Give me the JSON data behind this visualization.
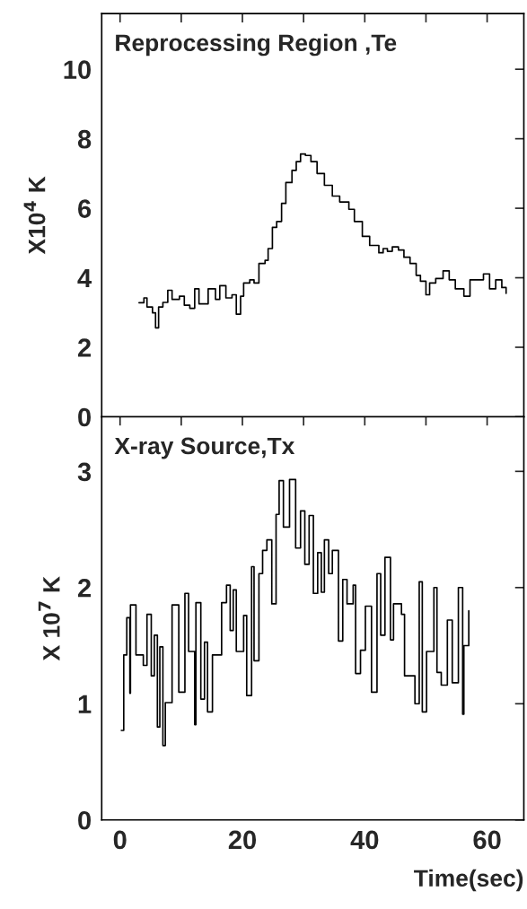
{
  "chart_data": [
    {
      "type": "step",
      "title": "Reprocessing Region ,Te",
      "ylabel": "X10$^{4}$ K",
      "xlim": [
        -3,
        66
      ],
      "xticks": [
        {
          "value": 0,
          "label": null
        },
        {
          "value": 10,
          "label": null
        },
        {
          "value": 20,
          "label": null
        },
        {
          "value": 30,
          "label": null
        },
        {
          "value": 40,
          "label": null
        },
        {
          "value": 50,
          "label": null
        },
        {
          "value": 60,
          "label": null
        }
      ],
      "ylim": [
        0,
        11.6
      ],
      "yticks": [
        0,
        2,
        4,
        6,
        8,
        10
      ],
      "tick_labels": "y",
      "series": [
        {
          "color": "#000000",
          "x": [
            3.1,
            3.9,
            4.4,
            5.3,
            5.8,
            6.3,
            7.0,
            7.8,
            8.5,
            9.7,
            10.5,
            11.4,
            12.2,
            12.9,
            14.4,
            15.6,
            16.3,
            17.3,
            18.3,
            19.0,
            19.7,
            20.2,
            21.2,
            21.9,
            22.7,
            23.7,
            24.2,
            24.9,
            25.6,
            26.4,
            27.1,
            28.1,
            28.8,
            29.5,
            30.3,
            31.2,
            32.2,
            33.4,
            34.7,
            35.9,
            37.4,
            38.3,
            39.6,
            40.8,
            42.3,
            43.0,
            43.7,
            44.5,
            45.5,
            46.4,
            47.4,
            48.4,
            49.1,
            50.0,
            50.6,
            51.6,
            52.8,
            53.8,
            54.8,
            56.2,
            57.2,
            58.4,
            59.4,
            60.4,
            61.4,
            62.4,
            63.1
          ],
          "values": [
            3.28,
            3.42,
            3.16,
            2.99,
            2.56,
            3.16,
            3.29,
            3.64,
            3.38,
            3.47,
            3.21,
            3.12,
            3.68,
            3.25,
            3.68,
            3.38,
            3.77,
            3.42,
            3.51,
            2.95,
            3.47,
            3.85,
            3.94,
            3.85,
            4.41,
            4.5,
            4.84,
            5.45,
            5.62,
            6.14,
            6.74,
            7.09,
            7.34,
            7.56,
            7.52,
            7.34,
            7.0,
            6.66,
            6.35,
            6.18,
            5.97,
            5.62,
            5.19,
            4.93,
            4.72,
            4.84,
            4.76,
            4.89,
            4.8,
            4.59,
            4.41,
            4.07,
            3.9,
            3.51,
            3.85,
            3.98,
            4.2,
            3.94,
            3.68,
            3.47,
            3.94,
            3.94,
            4.11,
            3.68,
            3.94,
            3.72,
            3.55
          ]
        }
      ]
    },
    {
      "type": "step",
      "title": "X-ray Source,Tx",
      "ylabel": "X 10$^{7}$ K",
      "xlabel": "Time(sec)",
      "xlim": [
        -3,
        66
      ],
      "xticks": [
        0,
        {
          "value": 10,
          "label": null
        },
        20,
        {
          "value": 30,
          "label": null
        },
        40,
        {
          "value": 50,
          "label": null
        },
        60
      ],
      "ylim": [
        0,
        3.47
      ],
      "yticks": [
        0,
        1,
        2,
        3
      ],
      "series": [
        {
          "color": "#000000",
          "x": [
            0.2,
            0.6,
            1.1,
            1.6,
            1.7,
            2.6,
            3.8,
            4.4,
            5.1,
            5.6,
            6.1,
            6.5,
            7.0,
            7.4,
            8.5,
            9.6,
            10.6,
            11.2,
            12.2,
            12.4,
            13.2,
            13.8,
            14.3,
            15.1,
            16.6,
            17.4,
            18.0,
            18.5,
            19.0,
            20.2,
            20.7,
            21.5,
            21.9,
            22.7,
            23.3,
            24.0,
            24.8,
            25.5,
            26.0,
            26.7,
            27.7,
            28.7,
            29.5,
            30.2,
            30.9,
            31.6,
            32.3,
            32.9,
            33.4,
            34.1,
            34.7,
            35.7,
            36.4,
            37.1,
            38.1,
            38.5,
            39.3,
            40.1,
            41.1,
            42.0,
            42.6,
            43.3,
            44.2,
            44.7,
            46.0,
            46.5,
            48.2,
            48.9,
            49.4,
            50.1,
            51.3,
            51.8,
            52.5,
            53.5,
            54.3,
            55.3,
            56.0,
            56.2,
            57.0
          ],
          "values": [
            0.77,
            1.42,
            1.74,
            1.09,
            1.85,
            1.42,
            1.33,
            1.77,
            1.24,
            1.59,
            0.8,
            1.49,
            0.64,
            1.01,
            1.85,
            1.1,
            1.95,
            1.45,
            0.82,
            1.87,
            1.04,
            1.53,
            0.93,
            1.42,
            1.87,
            2.02,
            1.63,
            1.98,
            1.45,
            1.76,
            1.07,
            2.18,
            1.37,
            2.12,
            2.32,
            2.41,
            1.86,
            2.63,
            2.92,
            2.52,
            2.93,
            2.34,
            2.66,
            2.2,
            2.62,
            1.95,
            2.3,
            1.96,
            2.41,
            2.12,
            2.32,
            1.54,
            2.07,
            1.86,
            2.02,
            1.26,
            1.46,
            1.84,
            1.1,
            2.12,
            1.59,
            2.26,
            1.55,
            1.86,
            1.77,
            1.24,
            1.0,
            2.05,
            0.93,
            1.45,
            2.0,
            1.27,
            1.16,
            1.72,
            1.18,
            2.0,
            0.91,
            1.5,
            1.8
          ]
        }
      ]
    }
  ]
}
